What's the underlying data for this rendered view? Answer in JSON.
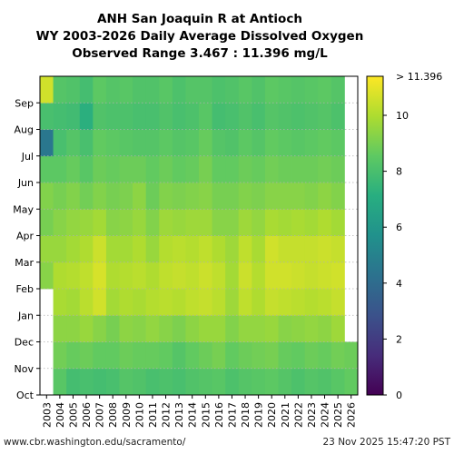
{
  "chart_data": {
    "type": "heatmap",
    "title_lines": [
      "ANH San Joaquin R at Antioch",
      "WY 2003-2026 Daily Average Dissolved Oxygen",
      "Observed Range 3.467 : 11.396 mg/L"
    ],
    "x_categories": [
      "2003",
      "2004",
      "2005",
      "2006",
      "2007",
      "2008",
      "2009",
      "2010",
      "2011",
      "2012",
      "2013",
      "2014",
      "2015",
      "2016",
      "2017",
      "2018",
      "2019",
      "2020",
      "2021",
      "2022",
      "2023",
      "2024",
      "2025",
      "2026"
    ],
    "y_month_ticks": [
      "Oct",
      "Nov",
      "Dec",
      "Jan",
      "Feb",
      "Mar",
      "Apr",
      "May",
      "Jun",
      "Jul",
      "Aug",
      "Sep"
    ],
    "colorbar": {
      "colormap": "viridis",
      "range": [
        0,
        11.396
      ],
      "ticks": [
        0,
        2,
        4,
        6,
        8,
        10
      ],
      "tick_labels": [
        "0",
        "2",
        "4",
        "6",
        "8",
        "10"
      ],
      "top_label": "> 11.396"
    },
    "units": "mg/L",
    "monthly_values": {
      "2003": [
        null,
        null,
        null,
        null,
        9.3,
        9.6,
        9.0,
        9.2,
        8.5,
        4.5,
        8.0,
        10.6
      ],
      "2004": [
        8.4,
        8.9,
        9.4,
        9.9,
        10.0,
        9.6,
        9.3,
        9.0,
        8.5,
        8.0,
        7.9,
        8.3
      ],
      "2005": [
        7.9,
        8.7,
        9.4,
        9.8,
        10.1,
        9.8,
        9.5,
        9.2,
        8.7,
        8.3,
        7.8,
        8.2
      ],
      "2006": [
        8.0,
        8.8,
        9.6,
        10.2,
        10.3,
        10.0,
        9.6,
        8.9,
        8.4,
        8.0,
        7.2,
        7.9
      ],
      "2007": [
        7.9,
        8.6,
        9.3,
        10.6,
        10.7,
        10.5,
        9.8,
        9.2,
        8.8,
        8.6,
        8.2,
        8.5
      ],
      "2008": [
        8.0,
        8.6,
        9.0,
        9.8,
        10.0,
        9.8,
        9.3,
        9.0,
        8.7,
        8.5,
        8.1,
        8.3
      ],
      "2009": [
        8.3,
        8.8,
        9.4,
        10.0,
        10.1,
        9.8,
        9.4,
        9.1,
        8.8,
        8.4,
        8.1,
        8.4
      ],
      "2010": [
        8.2,
        8.7,
        9.3,
        9.9,
        10.2,
        10.0,
        9.6,
        9.4,
        8.8,
        8.3,
        8.0,
        8.2
      ],
      "2011": [
        8.0,
        8.7,
        9.5,
        10.1,
        10.0,
        9.6,
        9.2,
        8.8,
        8.6,
        8.3,
        8.0,
        8.2
      ],
      "2012": [
        8.1,
        8.6,
        9.3,
        10.2,
        10.3,
        10.1,
        9.7,
        9.2,
        8.8,
        8.5,
        8.2,
        8.4
      ],
      "2013": [
        8.0,
        8.3,
        9.1,
        10.1,
        10.4,
        10.2,
        9.6,
        9.1,
        8.6,
        8.3,
        8.0,
        8.1
      ],
      "2014": [
        8.2,
        8.6,
        9.4,
        10.3,
        10.3,
        10.1,
        9.7,
        9.2,
        8.7,
        8.4,
        8.1,
        8.3
      ],
      "2015": [
        8.3,
        8.8,
        9.6,
        10.4,
        10.5,
        10.3,
        9.7,
        9.3,
        9.0,
        8.7,
        8.4,
        8.3
      ],
      "2016": [
        8.4,
        9.0,
        9.6,
        10.2,
        10.3,
        10.0,
        9.3,
        9.0,
        8.6,
        8.3,
        7.9,
        8.1
      ],
      "2017": [
        8.1,
        8.6,
        9.2,
        9.7,
        9.8,
        9.7,
        9.3,
        9.0,
        8.6,
        8.2,
        8.0,
        8.2
      ],
      "2018": [
        8.3,
        8.8,
        9.5,
        10.3,
        10.5,
        10.3,
        9.7,
        9.2,
        8.8,
        8.5,
        8.2,
        8.4
      ],
      "2019": [
        8.4,
        8.9,
        9.5,
        10.0,
        10.1,
        9.9,
        9.5,
        9.1,
        8.7,
        8.3,
        8.0,
        8.2
      ],
      "2020": [
        8.5,
        9.0,
        9.6,
        10.4,
        10.6,
        10.6,
        9.9,
        9.3,
        8.9,
        8.6,
        8.3,
        8.5
      ],
      "2021": [
        8.3,
        8.7,
        9.3,
        10.3,
        10.6,
        10.4,
        9.8,
        9.3,
        8.8,
        8.5,
        8.2,
        8.4
      ],
      "2022": [
        8.1,
        8.6,
        9.4,
        10.2,
        10.5,
        10.4,
        9.9,
        9.3,
        8.8,
        8.4,
        8.1,
        8.3
      ],
      "2023": [
        8.3,
        8.8,
        9.5,
        10.1,
        10.4,
        10.4,
        9.8,
        9.2,
        8.8,
        8.5,
        8.2,
        8.4
      ],
      "2024": [
        8.2,
        8.7,
        9.4,
        10.2,
        10.5,
        10.5,
        10.0,
        9.4,
        8.9,
        8.6,
        8.3,
        8.5
      ],
      "2025": [
        8.4,
        8.9,
        9.7,
        10.4,
        10.6,
        10.4,
        9.8,
        9.2,
        8.8,
        8.5,
        8.1,
        8.3
      ],
      "2026": [
        8.6,
        8.8,
        null,
        null,
        null,
        null,
        null,
        null,
        null,
        null,
        null,
        null
      ]
    }
  },
  "footer": {
    "left": "www.cbr.washington.edu/sacramento/",
    "right": "23 Nov 2025 15:47:20 PST"
  }
}
